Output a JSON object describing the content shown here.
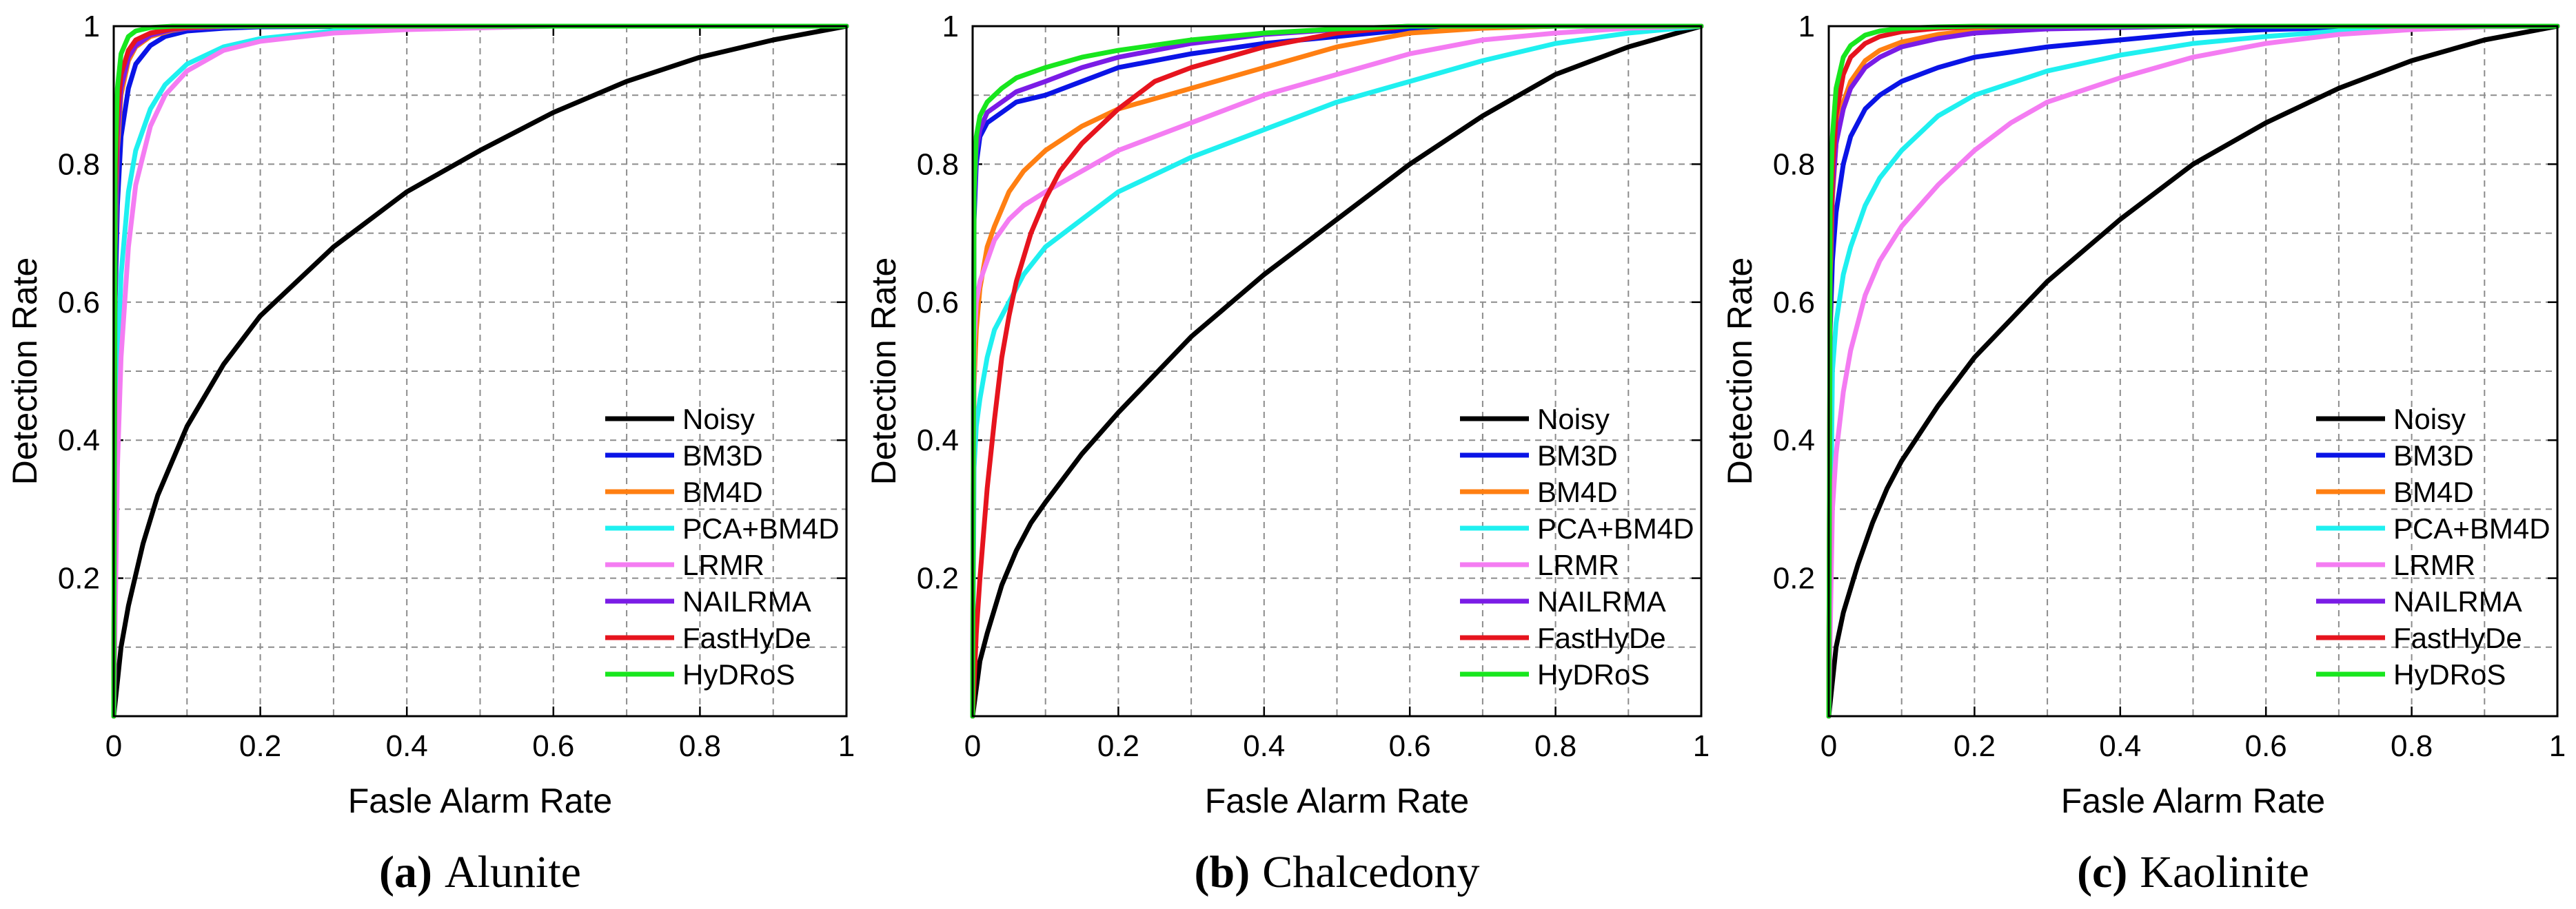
{
  "colors": {
    "Noisy": "#000000",
    "BM3D": "#0a14e6",
    "BM4D": "#ff7f12",
    "PCA+BM4D": "#1ff0f0",
    "LRMR": "#f47cf2",
    "NAILRMA": "#7a1ce6",
    "FastHyDe": "#e6141e",
    "HyDRoS": "#18e61e"
  },
  "chart_data": [
    {
      "type": "line",
      "title": "Alunite",
      "caption": {
        "letter": "(a)",
        "name": "Alunite"
      },
      "xlabel": "Fasle Alarm Rate",
      "ylabel": "Detection Rate",
      "xlim": [
        0,
        1
      ],
      "ylim": [
        0,
        1
      ],
      "xticks": [
        0,
        0.2,
        0.4,
        0.6,
        0.8,
        1
      ],
      "xtick_labels": [
        "0",
        "0.2",
        "0.4",
        "0.6",
        "0.8",
        "1"
      ],
      "yticks": [
        0.2,
        0.4,
        0.6,
        0.8,
        1
      ],
      "ytick_labels": [
        "0.2",
        "0.4",
        "0.6",
        "0.8",
        "1"
      ],
      "grid": true,
      "legend": "bottom-right",
      "series": [
        {
          "name": "Noisy",
          "x": [
            0,
            0.01,
            0.02,
            0.04,
            0.06,
            0.08,
            0.1,
            0.15,
            0.2,
            0.3,
            0.4,
            0.5,
            0.6,
            0.7,
            0.8,
            0.9,
            1
          ],
          "y": [
            0,
            0.1,
            0.16,
            0.25,
            0.32,
            0.37,
            0.42,
            0.51,
            0.58,
            0.68,
            0.76,
            0.82,
            0.875,
            0.92,
            0.955,
            0.98,
            1
          ]
        },
        {
          "name": "BM3D",
          "x": [
            0,
            0.002,
            0.005,
            0.01,
            0.02,
            0.03,
            0.05,
            0.07,
            0.1,
            0.15,
            0.2,
            0.4,
            1
          ],
          "y": [
            0,
            0.6,
            0.74,
            0.84,
            0.91,
            0.945,
            0.972,
            0.985,
            0.993,
            0.997,
            0.999,
            1,
            1
          ]
        },
        {
          "name": "BM4D",
          "x": [
            0,
            0.002,
            0.005,
            0.01,
            0.02,
            0.03,
            0.05,
            0.08,
            0.1,
            0.15,
            0.2,
            1
          ],
          "y": [
            0,
            0.68,
            0.82,
            0.9,
            0.95,
            0.97,
            0.985,
            0.994,
            0.997,
            0.999,
            1,
            1
          ]
        },
        {
          "name": "PCA+BM4D",
          "x": [
            0,
            0.005,
            0.01,
            0.02,
            0.03,
            0.05,
            0.07,
            0.1,
            0.15,
            0.2,
            0.3,
            0.4,
            0.6,
            1
          ],
          "y": [
            0,
            0.5,
            0.64,
            0.76,
            0.82,
            0.88,
            0.915,
            0.945,
            0.97,
            0.982,
            0.993,
            0.997,
            1,
            1
          ]
        },
        {
          "name": "LRMR",
          "x": [
            0,
            0.005,
            0.01,
            0.02,
            0.03,
            0.05,
            0.07,
            0.1,
            0.15,
            0.2,
            0.3,
            0.4,
            0.6,
            1
          ],
          "y": [
            0,
            0.36,
            0.52,
            0.68,
            0.77,
            0.855,
            0.9,
            0.935,
            0.965,
            0.978,
            0.99,
            0.995,
            1,
            1
          ]
        },
        {
          "name": "NAILRMA",
          "x": [
            0,
            0.002,
            0.005,
            0.01,
            0.02,
            0.03,
            0.05,
            0.08,
            0.1,
            0.15,
            0.2,
            1
          ],
          "y": [
            0,
            0.7,
            0.84,
            0.91,
            0.955,
            0.972,
            0.987,
            0.995,
            0.997,
            0.999,
            1,
            1
          ]
        },
        {
          "name": "FastHyDe",
          "x": [
            0,
            0.002,
            0.005,
            0.01,
            0.02,
            0.03,
            0.05,
            0.08,
            0.1,
            0.15,
            1
          ],
          "y": [
            0,
            0.75,
            0.87,
            0.93,
            0.965,
            0.98,
            0.99,
            0.996,
            0.998,
            1,
            1
          ]
        },
        {
          "name": "HyDRoS",
          "x": [
            0,
            0.002,
            0.005,
            0.01,
            0.02,
            0.03,
            0.05,
            0.08,
            0.1,
            1
          ],
          "y": [
            0,
            0.8,
            0.91,
            0.96,
            0.985,
            0.993,
            0.998,
            1,
            1,
            1
          ]
        }
      ]
    },
    {
      "type": "line",
      "title": "Chalcedony",
      "caption": {
        "letter": "(b)",
        "name": "Chalcedony"
      },
      "xlabel": "Fasle Alarm Rate",
      "ylabel": "Detection Rate",
      "xlim": [
        0,
        1
      ],
      "ylim": [
        0,
        1
      ],
      "xticks": [
        0,
        0.2,
        0.4,
        0.6,
        0.8,
        1
      ],
      "xtick_labels": [
        "0",
        "0.2",
        "0.4",
        "0.6",
        "0.8",
        "1"
      ],
      "yticks": [
        0.2,
        0.4,
        0.6,
        0.8,
        1
      ],
      "ytick_labels": [
        "0.2",
        "0.4",
        "0.6",
        "0.8",
        "1"
      ],
      "grid": true,
      "legend": "bottom-right",
      "series": [
        {
          "name": "Noisy",
          "x": [
            0,
            0.01,
            0.02,
            0.04,
            0.06,
            0.08,
            0.1,
            0.15,
            0.2,
            0.3,
            0.4,
            0.5,
            0.6,
            0.7,
            0.8,
            0.9,
            1
          ],
          "y": [
            0,
            0.08,
            0.12,
            0.19,
            0.24,
            0.28,
            0.31,
            0.38,
            0.44,
            0.55,
            0.64,
            0.72,
            0.8,
            0.87,
            0.93,
            0.97,
            1
          ]
        },
        {
          "name": "BM3D",
          "x": [
            0,
            0.002,
            0.005,
            0.01,
            0.02,
            0.04,
            0.06,
            0.1,
            0.15,
            0.2,
            0.3,
            0.4,
            0.5,
            0.6,
            0.8,
            1
          ],
          "y": [
            0,
            0.72,
            0.8,
            0.84,
            0.86,
            0.875,
            0.89,
            0.9,
            0.92,
            0.94,
            0.96,
            0.975,
            0.985,
            0.995,
            1,
            1
          ]
        },
        {
          "name": "BM4D",
          "x": [
            0,
            0.002,
            0.005,
            0.01,
            0.02,
            0.03,
            0.05,
            0.07,
            0.1,
            0.15,
            0.2,
            0.3,
            0.4,
            0.5,
            0.6,
            0.7,
            0.8,
            1
          ],
          "y": [
            0,
            0.48,
            0.56,
            0.62,
            0.68,
            0.71,
            0.76,
            0.79,
            0.82,
            0.855,
            0.88,
            0.91,
            0.94,
            0.97,
            0.99,
            0.997,
            1,
            1
          ]
        },
        {
          "name": "PCA+BM4D",
          "x": [
            0,
            0.002,
            0.005,
            0.01,
            0.02,
            0.03,
            0.05,
            0.07,
            0.1,
            0.15,
            0.2,
            0.3,
            0.4,
            0.5,
            0.6,
            0.7,
            0.8,
            0.9,
            1
          ],
          "y": [
            0,
            0.36,
            0.42,
            0.46,
            0.52,
            0.56,
            0.6,
            0.64,
            0.68,
            0.72,
            0.76,
            0.81,
            0.85,
            0.89,
            0.92,
            0.95,
            0.975,
            0.99,
            1
          ]
        },
        {
          "name": "LRMR",
          "x": [
            0,
            0.002,
            0.005,
            0.01,
            0.02,
            0.03,
            0.05,
            0.07,
            0.1,
            0.15,
            0.2,
            0.3,
            0.4,
            0.5,
            0.6,
            0.7,
            0.8,
            0.9,
            1
          ],
          "y": [
            0,
            0.54,
            0.6,
            0.63,
            0.66,
            0.69,
            0.72,
            0.74,
            0.76,
            0.79,
            0.82,
            0.86,
            0.9,
            0.93,
            0.96,
            0.98,
            0.99,
            0.997,
            1
          ]
        },
        {
          "name": "NAILRMA",
          "x": [
            0,
            0.002,
            0.005,
            0.01,
            0.02,
            0.04,
            0.06,
            0.1,
            0.15,
            0.2,
            0.3,
            0.4,
            0.5,
            0.6,
            1
          ],
          "y": [
            0,
            0.74,
            0.82,
            0.85,
            0.875,
            0.89,
            0.905,
            0.92,
            0.94,
            0.955,
            0.975,
            0.988,
            0.995,
            1,
            1
          ]
        },
        {
          "name": "FastHyDe",
          "x": [
            0,
            0.005,
            0.01,
            0.02,
            0.03,
            0.04,
            0.05,
            0.06,
            0.08,
            0.1,
            0.12,
            0.15,
            0.2,
            0.25,
            0.3,
            0.4,
            0.5,
            0.6,
            1
          ],
          "y": [
            0,
            0.12,
            0.2,
            0.33,
            0.43,
            0.52,
            0.58,
            0.63,
            0.7,
            0.75,
            0.79,
            0.83,
            0.88,
            0.92,
            0.94,
            0.97,
            0.99,
            1,
            1
          ]
        },
        {
          "name": "HyDRoS",
          "x": [
            0,
            0.002,
            0.005,
            0.01,
            0.02,
            0.04,
            0.06,
            0.1,
            0.15,
            0.2,
            0.3,
            0.4,
            0.5,
            0.6,
            1
          ],
          "y": [
            0,
            0.76,
            0.84,
            0.87,
            0.89,
            0.91,
            0.925,
            0.94,
            0.955,
            0.965,
            0.98,
            0.99,
            0.996,
            1,
            1
          ]
        }
      ]
    },
    {
      "type": "line",
      "title": "Kaolinite",
      "caption": {
        "letter": "(c)",
        "name": "Kaolinite"
      },
      "xlabel": "Fasle Alarm Rate",
      "ylabel": "Detection Rate",
      "xlim": [
        0,
        1
      ],
      "ylim": [
        0,
        1
      ],
      "xticks": [
        0,
        0.2,
        0.4,
        0.6,
        0.8,
        1
      ],
      "xtick_labels": [
        "0",
        "0.2",
        "0.4",
        "0.6",
        "0.8",
        "1"
      ],
      "yticks": [
        0.2,
        0.4,
        0.6,
        0.8,
        1
      ],
      "ytick_labels": [
        "0.2",
        "0.4",
        "0.6",
        "0.8",
        "1"
      ],
      "grid": true,
      "legend": "bottom-right",
      "series": [
        {
          "name": "Noisy",
          "x": [
            0,
            0.01,
            0.02,
            0.04,
            0.06,
            0.08,
            0.1,
            0.15,
            0.2,
            0.3,
            0.4,
            0.5,
            0.6,
            0.7,
            0.8,
            0.9,
            1
          ],
          "y": [
            0,
            0.1,
            0.15,
            0.22,
            0.28,
            0.33,
            0.37,
            0.45,
            0.52,
            0.63,
            0.72,
            0.8,
            0.86,
            0.91,
            0.95,
            0.98,
            1
          ]
        },
        {
          "name": "BM3D",
          "x": [
            0,
            0.002,
            0.005,
            0.01,
            0.02,
            0.03,
            0.05,
            0.07,
            0.1,
            0.15,
            0.2,
            0.3,
            0.4,
            0.5,
            0.6,
            0.8,
            1
          ],
          "y": [
            0,
            0.56,
            0.66,
            0.73,
            0.8,
            0.84,
            0.88,
            0.9,
            0.92,
            0.94,
            0.955,
            0.97,
            0.98,
            0.99,
            0.995,
            1,
            1
          ]
        },
        {
          "name": "BM4D",
          "x": [
            0,
            0.002,
            0.005,
            0.01,
            0.02,
            0.03,
            0.05,
            0.07,
            0.1,
            0.15,
            0.2,
            0.3,
            0.5,
            1
          ],
          "y": [
            0,
            0.64,
            0.75,
            0.83,
            0.89,
            0.92,
            0.95,
            0.965,
            0.977,
            0.988,
            0.994,
            0.998,
            1,
            1
          ]
        },
        {
          "name": "PCA+BM4D",
          "x": [
            0,
            0.005,
            0.01,
            0.02,
            0.03,
            0.05,
            0.07,
            0.1,
            0.15,
            0.2,
            0.3,
            0.4,
            0.5,
            0.6,
            0.7,
            0.8,
            1
          ],
          "y": [
            0,
            0.5,
            0.57,
            0.64,
            0.68,
            0.74,
            0.78,
            0.82,
            0.87,
            0.9,
            0.935,
            0.958,
            0.975,
            0.985,
            0.993,
            0.998,
            1
          ]
        },
        {
          "name": "LRMR",
          "x": [
            0,
            0.005,
            0.01,
            0.02,
            0.03,
            0.05,
            0.07,
            0.1,
            0.15,
            0.2,
            0.25,
            0.3,
            0.4,
            0.5,
            0.6,
            0.7,
            0.8,
            0.9,
            1
          ],
          "y": [
            0,
            0.3,
            0.38,
            0.47,
            0.53,
            0.61,
            0.66,
            0.71,
            0.77,
            0.82,
            0.86,
            0.89,
            0.925,
            0.955,
            0.975,
            0.988,
            0.995,
            0.999,
            1
          ]
        },
        {
          "name": "NAILRMA",
          "x": [
            0,
            0.002,
            0.005,
            0.01,
            0.02,
            0.03,
            0.05,
            0.07,
            0.1,
            0.15,
            0.2,
            0.3,
            0.5,
            1
          ],
          "y": [
            0,
            0.66,
            0.76,
            0.83,
            0.88,
            0.91,
            0.94,
            0.955,
            0.97,
            0.982,
            0.99,
            0.996,
            1,
            1
          ]
        },
        {
          "name": "FastHyDe",
          "x": [
            0,
            0.002,
            0.005,
            0.01,
            0.02,
            0.03,
            0.05,
            0.07,
            0.1,
            0.15,
            0.2,
            0.3,
            1
          ],
          "y": [
            0,
            0.66,
            0.79,
            0.87,
            0.93,
            0.955,
            0.975,
            0.985,
            0.992,
            0.997,
            0.999,
            1,
            1
          ]
        },
        {
          "name": "HyDRoS",
          "x": [
            0,
            0.002,
            0.005,
            0.01,
            0.02,
            0.03,
            0.05,
            0.07,
            0.1,
            0.15,
            0.2,
            1
          ],
          "y": [
            0,
            0.74,
            0.84,
            0.91,
            0.955,
            0.972,
            0.987,
            0.993,
            0.997,
            0.999,
            1,
            1
          ]
        }
      ]
    }
  ]
}
